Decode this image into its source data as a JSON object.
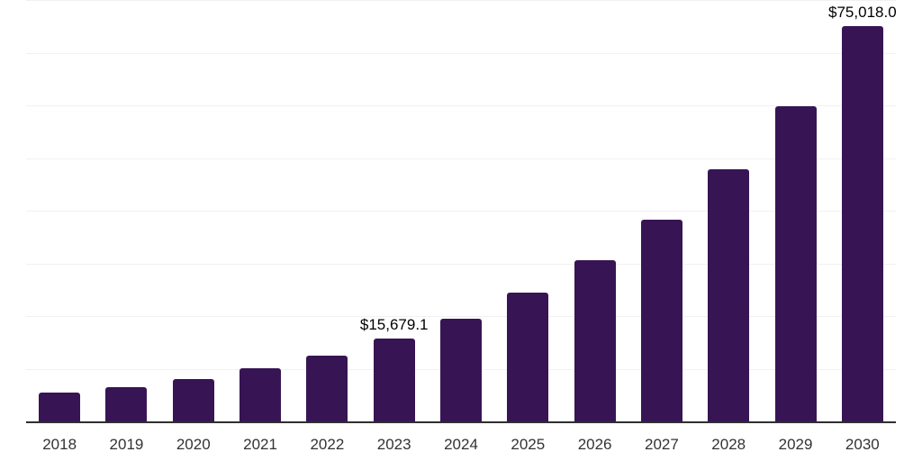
{
  "chart": {
    "background_color": "#ffffff",
    "bar_color": "#371554",
    "grid_color": "#f1f1f1",
    "axis_color": "#2f2f2f",
    "tick_label_color": "#333333",
    "data_label_color": "#000000"
  },
  "chart_data": {
    "type": "bar",
    "title": "",
    "xlabel": "",
    "ylabel": "",
    "categories": [
      "2018",
      "2019",
      "2020",
      "2021",
      "2022",
      "2023",
      "2024",
      "2025",
      "2026",
      "2027",
      "2028",
      "2029",
      "2030"
    ],
    "values": [
      5400,
      6500,
      8000,
      10100,
      12500,
      15679.1,
      19500,
      24400,
      30600,
      38250,
      47800,
      59900,
      75018.0
    ],
    "bar_labels": [
      "",
      "",
      "",
      "",
      "",
      "$15,679.1",
      "",
      "",
      "",
      "",
      "",
      "",
      "$75,018.0"
    ],
    "ylim": [
      0,
      80000
    ],
    "grid_step": 10000,
    "grid": true,
    "legend": false
  }
}
